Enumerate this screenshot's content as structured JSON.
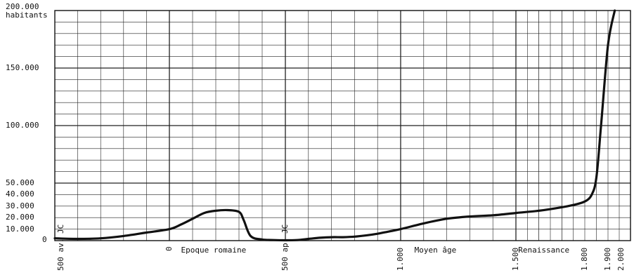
{
  "chart_data": {
    "type": "line",
    "ylabel": "habitants",
    "ylim": [
      0,
      200000
    ],
    "y_ticks": [
      {
        "value": 200000,
        "label": "200.000"
      },
      {
        "value": 150000,
        "label": "150.000"
      },
      {
        "value": 100000,
        "label": "100.000"
      },
      {
        "value": 50000,
        "label": "50.000"
      },
      {
        "value": 40000,
        "label": "40.000"
      },
      {
        "value": 30000,
        "label": "30.000"
      },
      {
        "value": 20000,
        "label": "20.000"
      },
      {
        "value": 10000,
        "label": "10.000"
      },
      {
        "value": 0,
        "label": "0"
      }
    ],
    "x_ticks": [
      {
        "value": -500,
        "label": "500 av. JC"
      },
      {
        "value": 0,
        "label": "0"
      },
      {
        "value": 500,
        "label": "500 ap. JC"
      },
      {
        "value": 1000,
        "label": "1.000"
      },
      {
        "value": 1500,
        "label": "1.500"
      },
      {
        "value": 1800,
        "label": "1.800"
      },
      {
        "value": 1900,
        "label": "1.900"
      },
      {
        "value": 2000,
        "label": "2.000"
      }
    ],
    "annotations": [
      {
        "text": "Epoque romaine",
        "x": 50
      },
      {
        "text": "Moyen âge",
        "x": 1060
      },
      {
        "text": "Renaissance",
        "x": 1510
      }
    ],
    "grid": true,
    "series": [
      {
        "x": [
          -500,
          -400,
          -300,
          -200,
          -100,
          0,
          50,
          100,
          150,
          200,
          250,
          300,
          320,
          350,
          400,
          450,
          500,
          550,
          600,
          650,
          700,
          750,
          800,
          850,
          900,
          950,
          1000,
          1100,
          1200,
          1300,
          1400,
          1500,
          1600,
          1700,
          1750,
          1800,
          1830,
          1850,
          1870,
          1900,
          1930
        ],
        "y": [
          2000,
          1500,
          2000,
          4000,
          7000,
          10000,
          14000,
          19000,
          24000,
          26000,
          26500,
          25000,
          18000,
          4000,
          1000,
          500,
          300,
          500,
          1500,
          2500,
          3000,
          3000,
          3500,
          4500,
          6000,
          8000,
          10000,
          15000,
          19000,
          21000,
          22000,
          24000,
          26000,
          29000,
          31000,
          34000,
          40000,
          55000,
          100000,
          170000,
          200000
        ]
      }
    ]
  }
}
